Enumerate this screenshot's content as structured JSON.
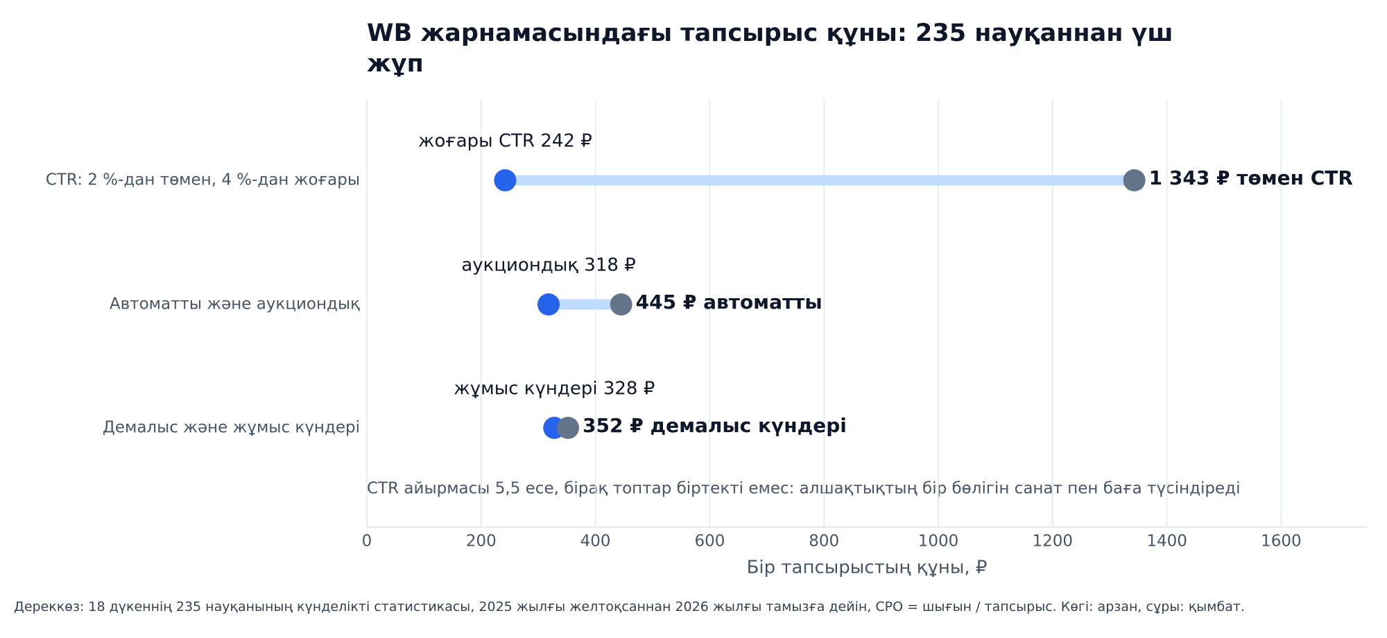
{
  "chart_data": {
    "type": "dumbbell",
    "title": "WB жарнамасындағы тапсырыс құны: 235 науқаннан үш жұп",
    "x_label": "Бір тапсырыстың құны, ₽",
    "annotation": "CTR айырмасы 5,5 есе, бірақ топтар біртекті емес: алшақтықтың бір бөлігін санат пен баға түсіндіреді",
    "source": "Дереккөз: 18 дүкеннің 235 науқанының күнделікті статистикасы, 2025 жылғы желтоқсаннан 2026 жылғы тамызға дейін, CPO = шығын / тапсырыс. Көгі: арзан, сұры: қымбат.",
    "categories": [
      "CTR: 2 %-дан төмен, 4 %-дан жоғары",
      "Автоматты және аукциондық",
      "Демалыс және жұмыс күндері"
    ],
    "series": [
      {
        "color": "#2563eb",
        "values": [
          242,
          318,
          328
        ],
        "value_labels": [
          "жоғары CTR 242 ₽",
          "аукциондық 318 ₽",
          "жұмыс күндері 328 ₽"
        ]
      },
      {
        "color": "#64748b",
        "values": [
          1343,
          445,
          352
        ],
        "value_labels": [
          "1 343 ₽ төмен CTR",
          "445 ₽ автоматты",
          "352 ₽ демалыс күндері"
        ]
      }
    ],
    "connector_color": "#bfdbfe",
    "xlim": [
      0,
      1750
    ],
    "xticks": [
      0,
      200,
      400,
      600,
      800,
      1000,
      1200,
      1400,
      1600
    ],
    "grid": true
  }
}
